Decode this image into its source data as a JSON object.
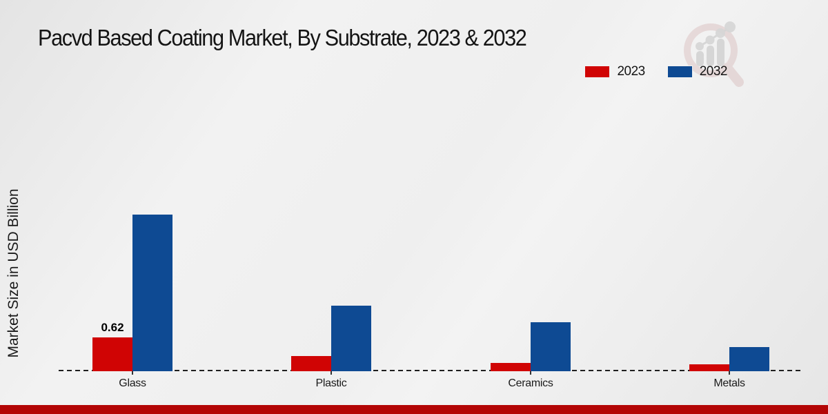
{
  "page": {
    "footer_bar_color": "#b30505",
    "watermark_icon": "magnifier-bar-chart-logo"
  },
  "chart_data": {
    "type": "bar",
    "title": "Pacvd Based Coating Market, By Substrate, 2023 & 2032",
    "xlabel": "",
    "ylabel": "Market Size in USD Billion",
    "categories": [
      "Glass",
      "Plastic",
      "Ceramics",
      "Metals"
    ],
    "series": [
      {
        "name": "2023",
        "color": "#d00404",
        "values": [
          0.62,
          0.28,
          0.15,
          0.13
        ]
      },
      {
        "name": "2032",
        "color": "#0e4a93",
        "values": [
          2.86,
          1.2,
          0.89,
          0.44
        ]
      }
    ],
    "value_labels": [
      {
        "category": "Glass",
        "series": "2023",
        "text": "0.62"
      }
    ],
    "legend_position": "top-right",
    "grid": false,
    "baseline_style": "dashed",
    "ylim": [
      0,
      3.2
    ]
  }
}
